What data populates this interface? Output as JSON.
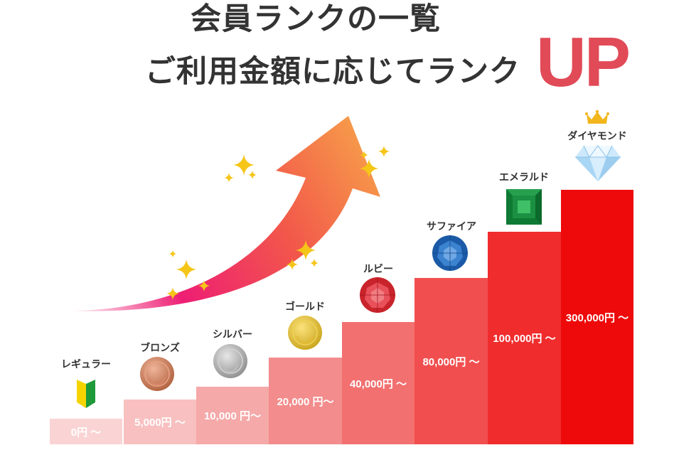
{
  "header": {
    "title_line1": "会員ランクの一覧",
    "title_line2": "ご利用金額に応じてランク",
    "title_up": "UP"
  },
  "ranks": [
    {
      "name": "レギュラー",
      "threshold": "0円 〜",
      "icon": "beginner-mark-icon",
      "color": "#fad4d4"
    },
    {
      "name": "ブロンズ",
      "threshold": "5,000円 〜",
      "icon": "bronze-medal-icon",
      "color": "#f8c0c0"
    },
    {
      "name": "シルバー",
      "threshold": "10,000 円〜",
      "icon": "silver-medal-icon",
      "color": "#f5a9a9"
    },
    {
      "name": "ゴールド",
      "threshold": "20,000 円〜",
      "icon": "gold-medal-icon",
      "color": "#f38c8c"
    },
    {
      "name": "ルビー",
      "threshold": "40,000円 〜",
      "icon": "ruby-gem-icon",
      "color": "#f27070"
    },
    {
      "name": "サファイア",
      "threshold": "80,000円 〜",
      "icon": "sapphire-gem-icon",
      "color": "#f14f4f"
    },
    {
      "name": "エメラルド",
      "threshold": "100,000円 〜",
      "icon": "emerald-gem-icon",
      "color": "#f02c2c"
    },
    {
      "name": "ダイヤモンド",
      "threshold": "300,000円 〜",
      "icon": "diamond-gem-icon",
      "color": "#ee0a0a"
    }
  ],
  "decorations": {
    "arrow": "rising-arrow-icon",
    "sparkles": "sparkle-icon",
    "crown": "crown-icon"
  }
}
